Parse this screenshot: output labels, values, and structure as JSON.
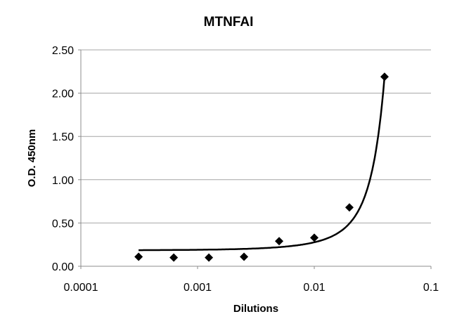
{
  "chart_data": {
    "type": "scatter",
    "title": "MTNFAI",
    "xlabel": "Dilutions",
    "ylabel": "O.D. 450nm",
    "x_scale": "log",
    "xlim": [
      0.0001,
      0.1
    ],
    "ylim": [
      0,
      2.5
    ],
    "x_ticks": [
      "0.0001",
      "0.001",
      "0.01",
      "0.1"
    ],
    "y_ticks": [
      "0.00",
      "0.50",
      "1.00",
      "1.50",
      "2.00",
      "2.50"
    ],
    "grid": "horizontal",
    "legend": "none",
    "series": [
      {
        "name": "MTNFAI",
        "marker": "diamond",
        "color": "#000000",
        "x": [
          0.0003125,
          0.000625,
          0.00125,
          0.0025,
          0.005,
          0.01,
          0.02,
          0.04
        ],
        "y": [
          0.11,
          0.1,
          0.1,
          0.11,
          0.29,
          0.33,
          0.68,
          2.19
        ]
      }
    ],
    "trendline": {
      "type": "exponential fit",
      "color": "#000000"
    }
  }
}
